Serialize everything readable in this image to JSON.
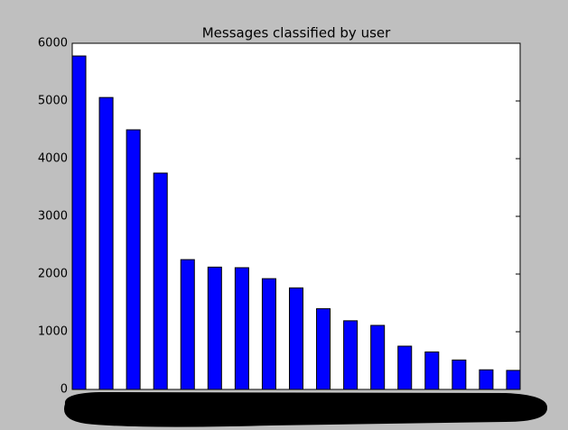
{
  "chart_data": {
    "type": "bar",
    "title": "Messages classified by user",
    "categories": [
      null,
      null,
      null,
      null,
      null,
      null,
      null,
      null,
      null,
      null,
      null,
      null,
      null,
      null,
      null,
      null,
      null
    ],
    "values": [
      5780,
      5060,
      4500,
      3750,
      2250,
      2120,
      2110,
      1920,
      1760,
      1400,
      1190,
      1110,
      750,
      650,
      510,
      340,
      330
    ],
    "color": "#0000ff",
    "ylim": [
      0,
      6000
    ],
    "yticks": [
      0,
      1000,
      2000,
      3000,
      4000,
      5000,
      6000
    ],
    "grid": false
  }
}
